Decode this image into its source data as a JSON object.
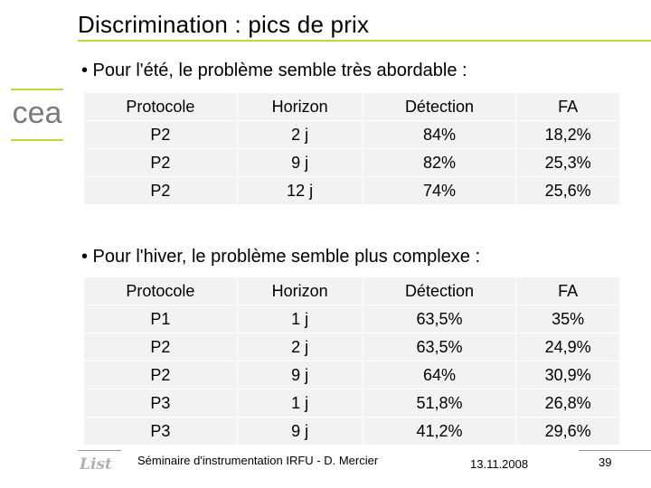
{
  "slide": {
    "title": "Discrimination : pics de prix",
    "bullet_summer": "• Pour l'été, le problème semble très abordable :",
    "bullet_winter": "• Pour l'hiver, le problème semble plus complexe :"
  },
  "logo": {
    "text": "cea",
    "accent_color": "#c8d23c"
  },
  "table_summer": {
    "headers": [
      "Protocole",
      "Horizon",
      "Détection",
      "FA"
    ],
    "rows": [
      [
        "P2",
        "2 j",
        "84%",
        "18,2%"
      ],
      [
        "P2",
        "9 j",
        "82%",
        "25,3%"
      ],
      [
        "P2",
        "12 j",
        "74%",
        "25,6%"
      ]
    ]
  },
  "table_winter": {
    "headers": [
      "Protocole",
      "Horizon",
      "Détection",
      "FA"
    ],
    "rows": [
      [
        "P1",
        "1 j",
        "63,5%",
        "35%"
      ],
      [
        "P2",
        "2 j",
        "63,5%",
        "24,9%"
      ],
      [
        "P2",
        "9 j",
        "64%",
        "30,9%"
      ],
      [
        "P3",
        "1 j",
        "51,8%",
        "26,8%"
      ],
      [
        "P3",
        "9 j",
        "41,2%",
        "29,6%"
      ]
    ]
  },
  "footer": {
    "logo_text": "List",
    "text": "Séminaire d'instrumentation IRFU - D. Mercier",
    "date": "13.11.2008",
    "page": "39"
  }
}
